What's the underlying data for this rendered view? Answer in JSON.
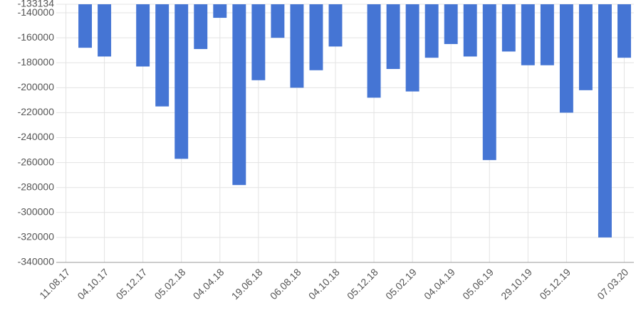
{
  "chart_data": {
    "type": "bar",
    "categories": [
      "11.08.17",
      null,
      "04.10.17",
      null,
      "05.12.17",
      null,
      "05.02.18",
      null,
      "04.04.18",
      null,
      "19.06.18",
      null,
      "06.08.18",
      null,
      "04.10.18",
      null,
      "05.12.18",
      null,
      "05.02.19",
      null,
      "04.04.19",
      null,
      "05.06.19",
      null,
      "29.10.19",
      null,
      "05.12.19",
      null,
      null,
      "07.03.20"
    ],
    "values": [
      null,
      -168000,
      -175000,
      null,
      -183000,
      -215000,
      -257000,
      -169000,
      -144000,
      -278000,
      -194000,
      -160000,
      -200000,
      -186000,
      -167000,
      null,
      -208000,
      -185000,
      -203000,
      -176000,
      -165000,
      -175000,
      -258000,
      -171000,
      -182000,
      -182000,
      -220000,
      -202000,
      -320000,
      -176000
    ],
    "color": "#4575d4",
    "ylim": [
      -340000,
      -133134
    ],
    "yticks": [
      -340000,
      -320000,
      -300000,
      -280000,
      -260000,
      -240000,
      -220000,
      -200000,
      -180000,
      -160000,
      -140000,
      -133134
    ],
    "grid": true
  }
}
